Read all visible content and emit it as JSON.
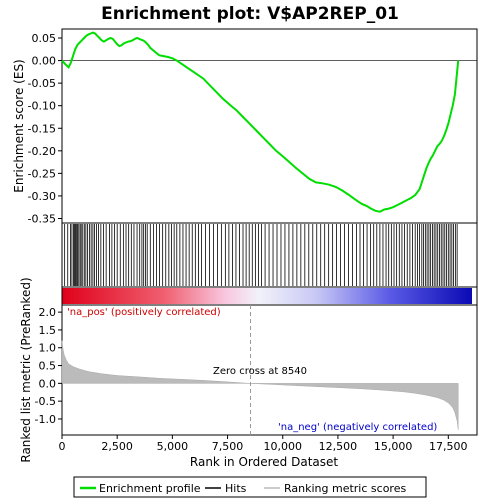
{
  "chart_data": {
    "type": "line",
    "title": "Enrichment plot: V$AP2REP_01",
    "top_panel": {
      "ylabel": "Enrichment score (ES)",
      "ylim": [
        -0.36,
        0.07
      ],
      "yticks": [
        0.05,
        0.0,
        -0.05,
        -0.1,
        -0.15,
        -0.2,
        -0.25,
        -0.3,
        -0.35
      ],
      "ytick_labels": [
        "0.05",
        "0.00",
        "-0.05",
        "-0.10",
        "-0.15",
        "-0.20",
        "-0.25",
        "-0.30",
        "-0.35"
      ],
      "series": [
        {
          "name": "Enrichment profile",
          "color": "#00dd00",
          "x": [
            0,
            150,
            300,
            400,
            500,
            600,
            700,
            800,
            900,
            1000,
            1100,
            1200,
            1300,
            1400,
            1500,
            1600,
            1700,
            1800,
            1900,
            2000,
            2100,
            2200,
            2300,
            2400,
            2500,
            2600,
            2700,
            2800,
            2900,
            3000,
            3100,
            3200,
            3300,
            3400,
            3500,
            3600,
            3700,
            3800,
            3900,
            4000,
            4200,
            4400,
            4600,
            4800,
            5000,
            5200,
            5500,
            5800,
            6100,
            6400,
            6700,
            7000,
            7300,
            7600,
            7900,
            8200,
            8500,
            8800,
            9100,
            9400,
            9700,
            10000,
            10300,
            10600,
            10900,
            11200,
            11500,
            11800,
            12100,
            12400,
            12700,
            13000,
            13200,
            13400,
            13600,
            13800,
            14000,
            14200,
            14400,
            14600,
            14800,
            15000,
            15200,
            15400,
            15600,
            15800,
            16000,
            16200,
            16300,
            16400,
            16500,
            16600,
            16700,
            16800,
            16900,
            17000,
            17100,
            17200,
            17300,
            17400,
            17500,
            17600,
            17700,
            17800,
            17850,
            17900,
            17950
          ],
          "y": [
            0.0,
            -0.008,
            -0.015,
            -0.005,
            0.01,
            0.025,
            0.035,
            0.04,
            0.045,
            0.05,
            0.055,
            0.058,
            0.06,
            0.062,
            0.06,
            0.055,
            0.05,
            0.045,
            0.042,
            0.045,
            0.048,
            0.05,
            0.048,
            0.042,
            0.036,
            0.032,
            0.034,
            0.038,
            0.04,
            0.042,
            0.043,
            0.045,
            0.048,
            0.05,
            0.048,
            0.046,
            0.044,
            0.04,
            0.035,
            0.028,
            0.02,
            0.012,
            0.01,
            0.008,
            0.005,
            0.0,
            -0.01,
            -0.02,
            -0.03,
            -0.04,
            -0.055,
            -0.07,
            -0.085,
            -0.098,
            -0.11,
            -0.125,
            -0.14,
            -0.155,
            -0.17,
            -0.185,
            -0.2,
            -0.212,
            -0.225,
            -0.238,
            -0.25,
            -0.262,
            -0.27,
            -0.272,
            -0.275,
            -0.28,
            -0.288,
            -0.298,
            -0.305,
            -0.312,
            -0.318,
            -0.322,
            -0.328,
            -0.333,
            -0.335,
            -0.33,
            -0.328,
            -0.325,
            -0.32,
            -0.315,
            -0.31,
            -0.305,
            -0.298,
            -0.285,
            -0.27,
            -0.255,
            -0.24,
            -0.228,
            -0.218,
            -0.21,
            -0.2,
            -0.19,
            -0.185,
            -0.178,
            -0.168,
            -0.155,
            -0.14,
            -0.12,
            -0.1,
            -0.075,
            -0.05,
            -0.025,
            0.0
          ]
        }
      ]
    },
    "hits_panel": {
      "series_name": "Hits",
      "positions": [
        120,
        260,
        380,
        450,
        520,
        570,
        610,
        650,
        700,
        760,
        820,
        870,
        940,
        1010,
        1080,
        1160,
        1240,
        1320,
        1400,
        1470,
        1560,
        1650,
        1760,
        1880,
        2000,
        2150,
        2260,
        2380,
        2500,
        2640,
        2780,
        2900,
        3020,
        3140,
        3260,
        3400,
        3520,
        3620,
        3700,
        3780,
        3860,
        4000,
        4140,
        4280,
        4420,
        4560,
        4700,
        4840,
        4960,
        5080,
        5200,
        5340,
        5480,
        5620,
        5760,
        5900,
        6040,
        6180,
        6320,
        6500,
        6680,
        6860,
        7040,
        7220,
        7400,
        7560,
        7720,
        7880,
        8040,
        8200,
        8340,
        8480,
        8620,
        8760,
        8900,
        9040,
        9200,
        9380,
        9560,
        9740,
        9920,
        10100,
        10280,
        10460,
        10640,
        10820,
        11000,
        11180,
        11360,
        11540,
        11720,
        11900,
        12080,
        12260,
        12440,
        12620,
        12800,
        12980,
        13160,
        13340,
        13500,
        13660,
        13820,
        13980,
        14120,
        14260,
        14400,
        14540,
        14680,
        14800,
        14920,
        15040,
        15160,
        15280,
        15400,
        15520,
        15640,
        15760,
        15880,
        16000,
        16100,
        16200,
        16300,
        16380,
        16460,
        16540,
        16620,
        16700,
        16780,
        16860,
        16940,
        17020,
        17100,
        17180,
        17260,
        17340,
        17420,
        17500,
        17580,
        17660,
        17740,
        17820,
        17900
      ]
    },
    "rank_panel": {
      "ylabel": "Ranked list metric (PreRanked)",
      "xlabel": "Rank in Ordered Dataset",
      "ylim": [
        -1.45,
        2.2
      ],
      "yticks": [
        2.0,
        1.5,
        1.0,
        0.5,
        0.0,
        -0.5,
        -1.0
      ],
      "ytick_labels": [
        "2.0",
        "1.5",
        "1.0",
        "0.5",
        "0.0",
        "-0.5",
        "-1.0"
      ],
      "xlim": [
        0,
        18800
      ],
      "xticks": [
        0,
        2500,
        5000,
        7500,
        10000,
        12500,
        15000,
        17500
      ],
      "xtick_labels": [
        "0",
        "2,500",
        "5,000",
        "7,500",
        "10,000",
        "12,500",
        "15,000",
        "17,500"
      ],
      "metric_x": [
        0,
        50,
        100,
        200,
        300,
        500,
        800,
        1200,
        1800,
        2500,
        3500,
        4500,
        5500,
        6500,
        7500,
        8540,
        9500,
        10500,
        11500,
        12500,
        13500,
        14500,
        15500,
        16000,
        16500,
        17000,
        17300,
        17500,
        17700,
        17800,
        17900,
        17950
      ],
      "metric_y": [
        1.2,
        0.95,
        0.8,
        0.65,
        0.55,
        0.47,
        0.4,
        0.33,
        0.27,
        0.22,
        0.18,
        0.14,
        0.11,
        0.08,
        0.04,
        0.0,
        -0.03,
        -0.06,
        -0.09,
        -0.12,
        -0.15,
        -0.19,
        -0.24,
        -0.28,
        -0.33,
        -0.4,
        -0.47,
        -0.55,
        -0.68,
        -0.82,
        -1.05,
        -1.3
      ],
      "zero_cross": 8540,
      "zero_cross_label": "Zero cross at 8540",
      "pos_label": "'na_pos' (positively correlated)",
      "neg_label": "'na_neg' (negatively correlated)"
    },
    "legend": [
      {
        "label": "Enrichment profile",
        "color": "#00dd00"
      },
      {
        "label": "Hits",
        "color": "#000000"
      },
      {
        "label": "Ranking metric scores",
        "color": "#bbbbbb"
      }
    ]
  }
}
